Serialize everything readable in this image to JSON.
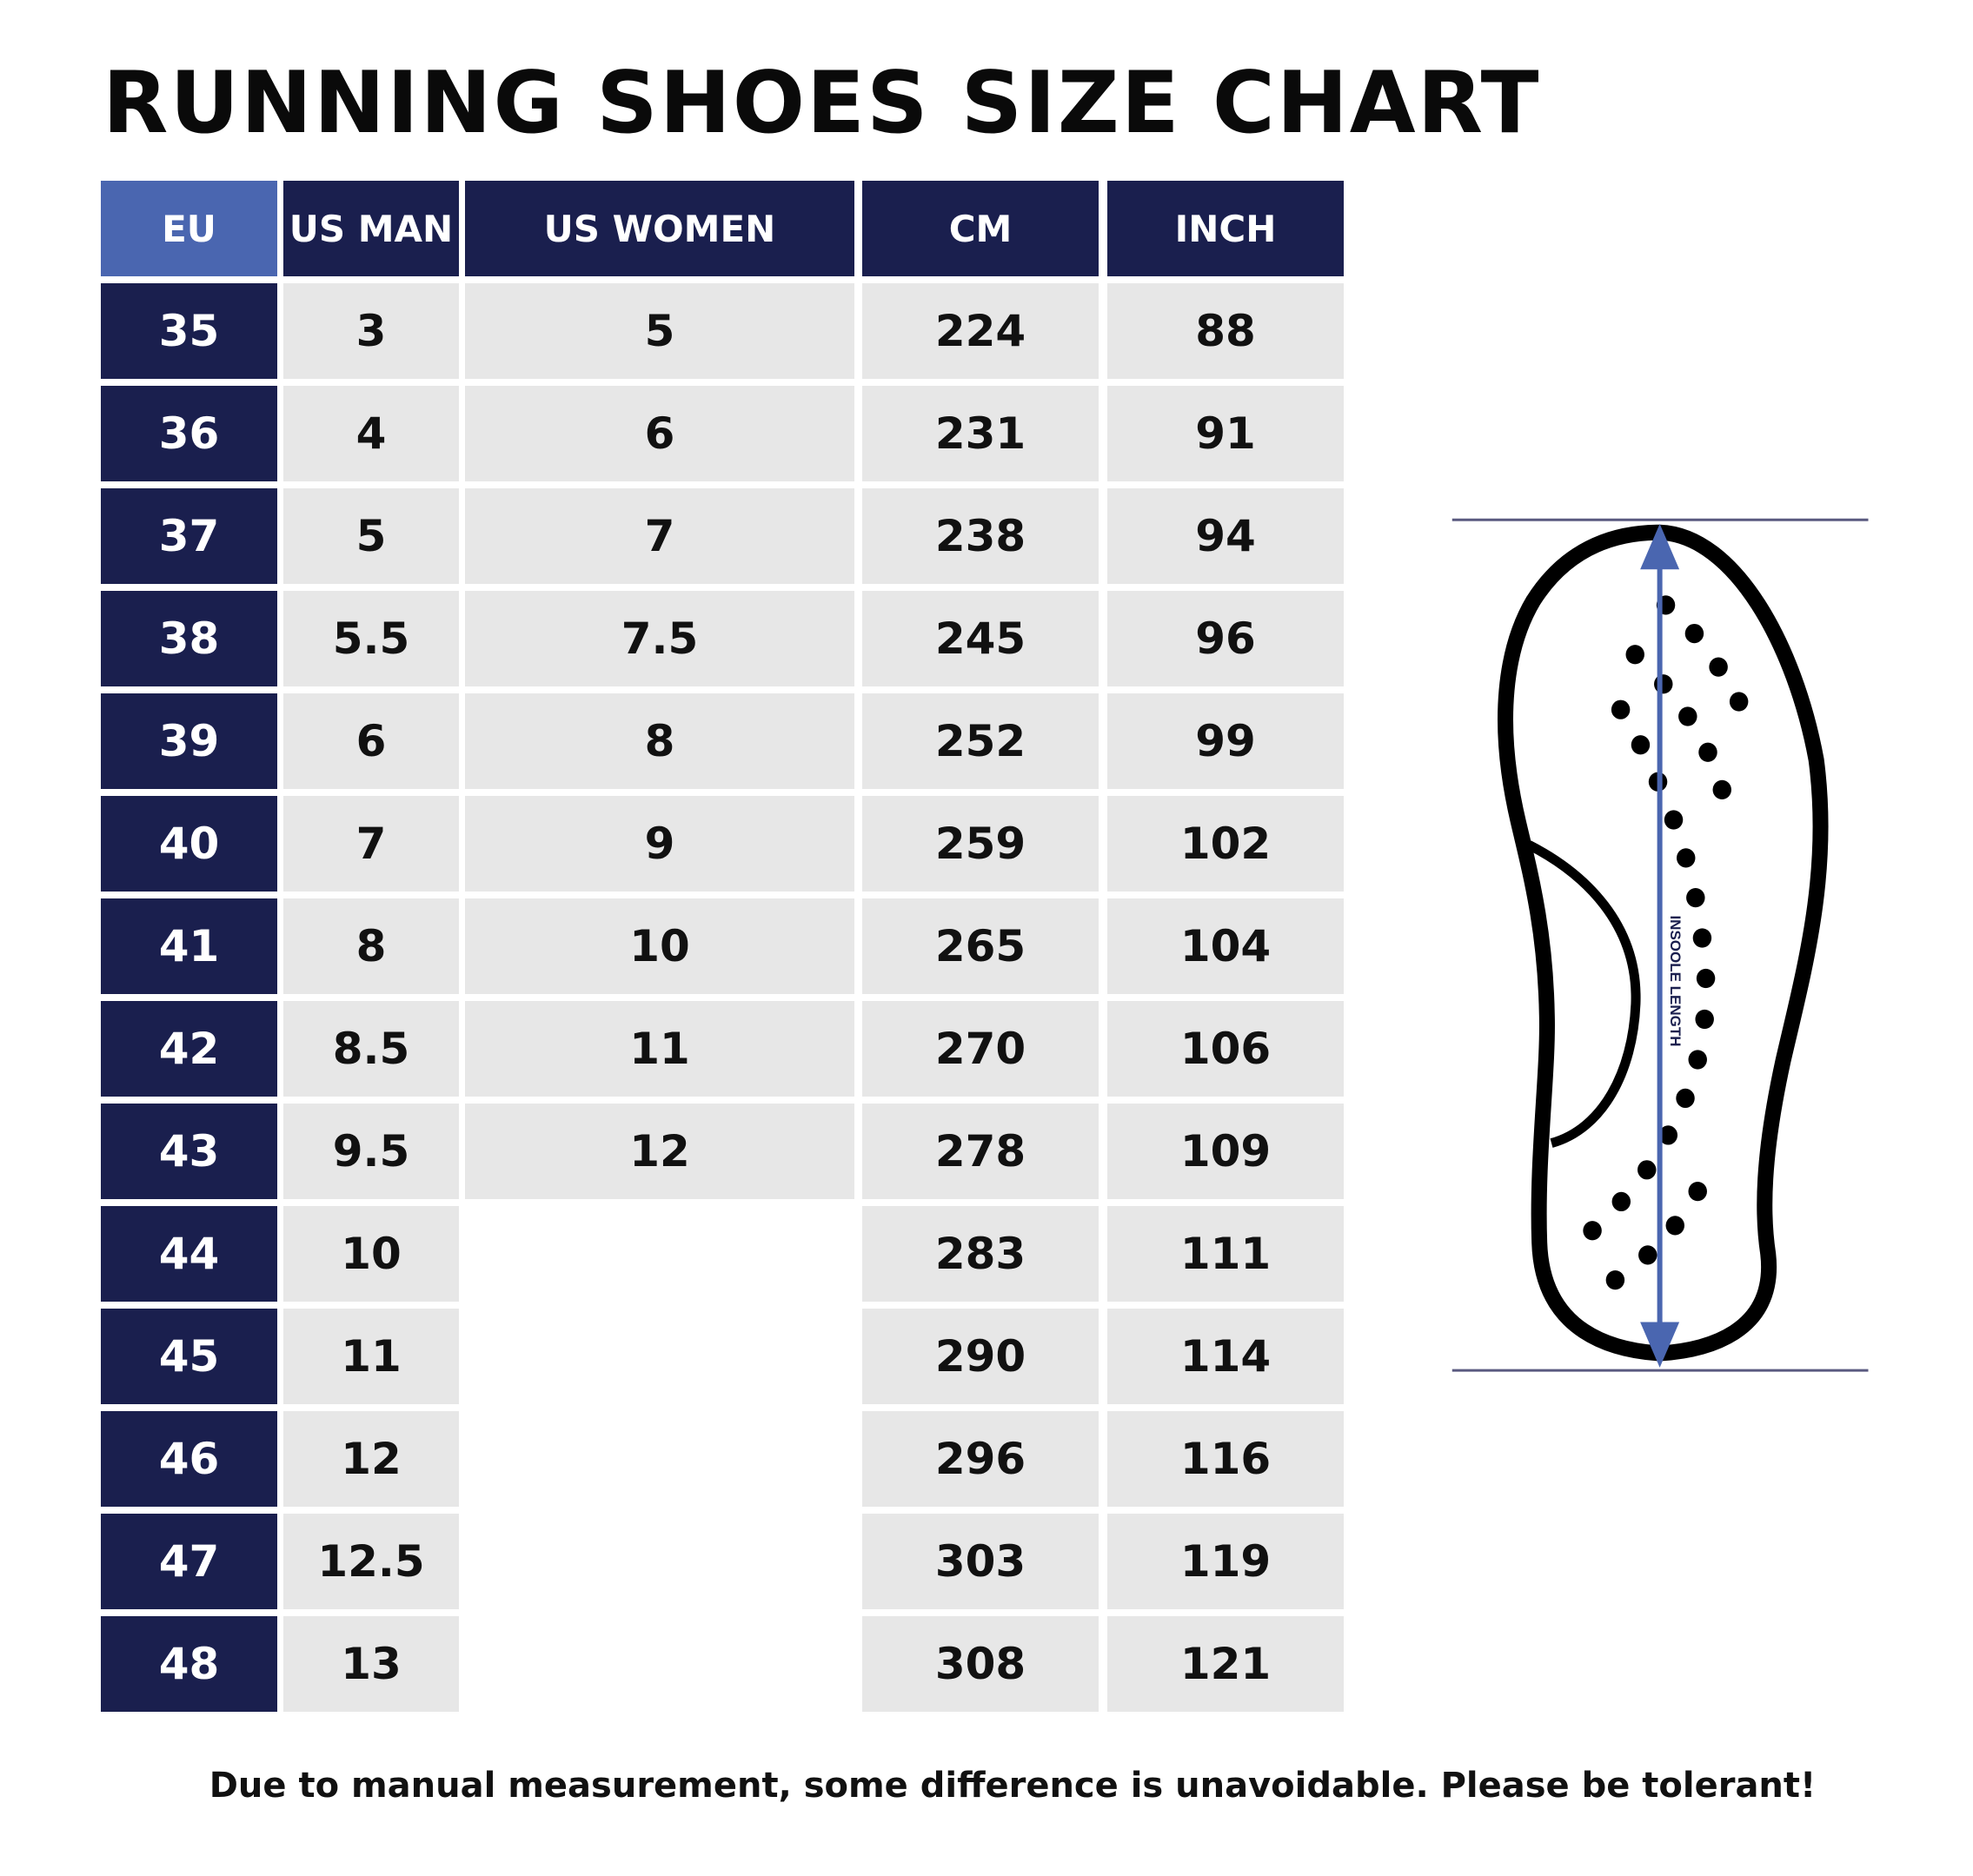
{
  "title": "RUNNING SHOES SIZE CHART",
  "table": {
    "headers": [
      "EU",
      "US MAN",
      "US WOMEN",
      "CM",
      "INCH"
    ],
    "rows": [
      [
        "35",
        "3",
        "5",
        "224",
        "88"
      ],
      [
        "36",
        "4",
        "6",
        "231",
        "91"
      ],
      [
        "37",
        "5",
        "7",
        "238",
        "94"
      ],
      [
        "38",
        "5.5",
        "7.5",
        "245",
        "96"
      ],
      [
        "39",
        "6",
        "8",
        "252",
        "99"
      ],
      [
        "40",
        "7",
        "9",
        "259",
        "102"
      ],
      [
        "41",
        "8",
        "10",
        "265",
        "104"
      ],
      [
        "42",
        "8.5",
        "11",
        "270",
        "106"
      ],
      [
        "43",
        "9.5",
        "12",
        "278",
        "109"
      ],
      [
        "44",
        "10",
        "",
        "283",
        "111"
      ],
      [
        "45",
        "11",
        "",
        "290",
        "114"
      ],
      [
        "46",
        "12",
        "",
        "296",
        "116"
      ],
      [
        "47",
        "12.5",
        "",
        "303",
        "119"
      ],
      [
        "48",
        "13",
        "",
        "308",
        "121"
      ]
    ]
  },
  "diagram": {
    "label": "INSOOLE LENGTH",
    "icon": "shoe-insole-icon"
  },
  "footer": "Due to manual measurement, some difference is unavoidable. Please be tolerant!",
  "colors": {
    "header_dark": "#1a1f4e",
    "header_eu": "#4a66b0",
    "cell_bg": "#e7e7e7",
    "arrow": "#4a66b0"
  }
}
